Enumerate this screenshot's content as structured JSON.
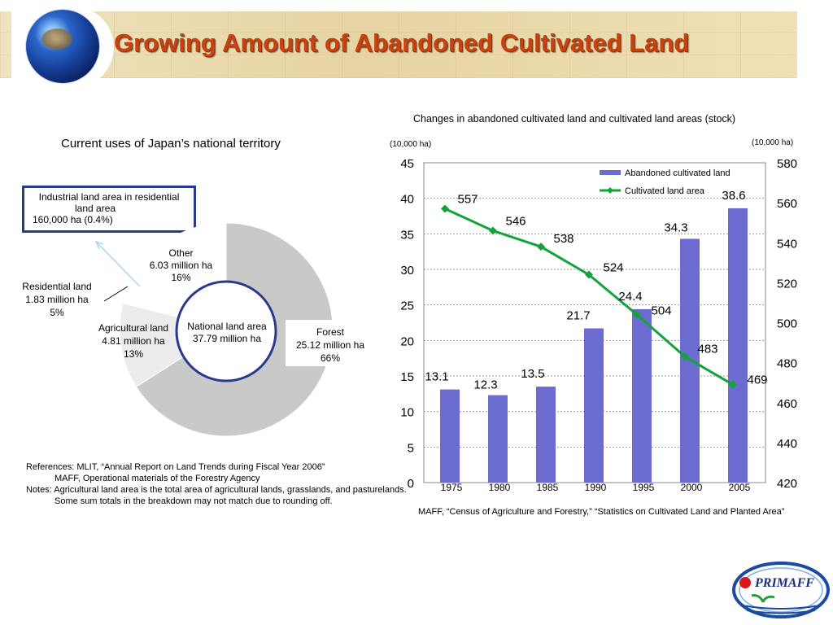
{
  "header": {
    "title": "Growing Amount of Abandoned Cultivated Land"
  },
  "left_panel": {
    "title": "Current uses of Japan’s national territory",
    "callout": {
      "line1": "Industrial land area in residential",
      "line2": "land area",
      "line3": "160,000 ha (0.4%)"
    },
    "center_label": {
      "line1": "National land area",
      "line2": "37.79 million ha"
    },
    "labels": {
      "residential": {
        "name": "Residential land",
        "value": "1.83 million ha",
        "pct": "5%"
      },
      "agricultural": {
        "name": "Agricultural land",
        "value": "4.81 million ha",
        "pct": "13%"
      },
      "other": {
        "name": "Other",
        "value": "6.03 million ha",
        "pct": "16%"
      },
      "forest": {
        "name": "Forest",
        "value": "25.12 million ha",
        "pct": "66%"
      }
    }
  },
  "references": {
    "line1": "References: MLIT, “Annual Report on Land Trends during Fiscal Year 2006”",
    "line2": "MAFF, Operational materials of the Forestry Agency",
    "line3": "Notes: Agricultural land area is the total area of agricultural lands, grasslands, and pasturelands.",
    "line4": "Some sum totals in the breakdown may not match due to rounding off."
  },
  "right_panel": {
    "title": "Changes in abandoned cultivated land and cultivated land areas (stock)",
    "left_unit": "(10,000 ha)",
    "right_unit": "(10,000 ha)",
    "source": "MAFF, “Census of Agriculture and Forestry,” “Statistics on Cultivated Land and Planted Area”"
  },
  "logo": {
    "text": "PRIMAFF"
  },
  "colors": {
    "title": "#c8410e",
    "bar": "#6b6bd0",
    "line": "#12a33a",
    "donut_dark": "#c9c9c9",
    "donut_light": "#ececec",
    "ring": "#283a8c"
  },
  "chart_data": [
    {
      "type": "pie",
      "title": "Current uses of Japan’s national territory",
      "labels": [
        "Forest",
        "Agricultural land",
        "Residential land",
        "Other"
      ],
      "values": [
        66,
        13,
        5,
        16
      ],
      "value_labels": [
        "25.12 million ha",
        "4.81 million ha",
        "1.83 million ha",
        "6.03 million ha"
      ]
    },
    {
      "type": "bar",
      "title": "Changes in abandoned cultivated land and cultivated land areas (stock)",
      "categories": [
        "1975",
        "1980",
        "1985",
        "1990",
        "1995",
        "2000",
        "2005"
      ],
      "series": [
        {
          "name": "Abandoned cultivated land",
          "type": "bar",
          "axis": "left",
          "values": [
            13.1,
            12.3,
            13.5,
            21.7,
            24.4,
            34.3,
            38.6
          ]
        },
        {
          "name": "Cultivated land area",
          "type": "line",
          "axis": "right",
          "values": [
            557,
            546,
            538,
            524,
            504,
            483,
            469
          ]
        }
      ],
      "ylim": [
        0,
        45
      ],
      "yticks": [
        0,
        5,
        10,
        15,
        20,
        25,
        30,
        35,
        40,
        45
      ],
      "y2lim": [
        420,
        580
      ],
      "y2ticks": [
        420,
        440,
        460,
        480,
        500,
        520,
        540,
        560,
        580
      ],
      "legend": "top-right",
      "grid": true
    }
  ]
}
